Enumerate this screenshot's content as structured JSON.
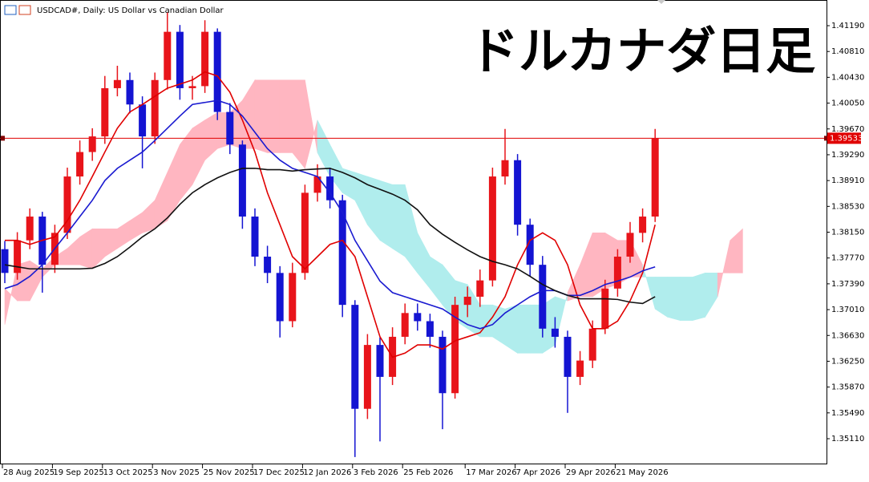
{
  "chart_data": {
    "type": "candlestick",
    "title": "USDCAD#, Daily: US Dollar vs Canadian Dollar",
    "overlay_text": "ドルカナダ日足",
    "categories": [
      "28 Aug 2025",
      null,
      null,
      null,
      "19 Sep 2025",
      null,
      null,
      null,
      "13 Oct 2025",
      null,
      null,
      null,
      "3 Nov 2025",
      null,
      null,
      null,
      "25 Nov 2025",
      null,
      null,
      null,
      "17 Dec 2025",
      null,
      null,
      null,
      "12 Jan 2026",
      null,
      null,
      null,
      "3 Feb 2026",
      null,
      null,
      null,
      "25 Feb 2026",
      null,
      null,
      null,
      null,
      "17 Mar 2026",
      null,
      null,
      null,
      "7 Apr 2026",
      null,
      null,
      null,
      "29 Apr 2026",
      null,
      null,
      null,
      "21 May 2026",
      null,
      null,
      null,
      null,
      null,
      null,
      null,
      null,
      null,
      null
    ],
    "open": [
      1.379,
      1.3755,
      1.3803,
      1.3838,
      1.3767,
      1.3814,
      1.3897,
      1.3933,
      1.3956,
      1.4027,
      1.4039,
      1.4003,
      1.3956,
      1.4039,
      1.411,
      1.4027,
      1.403,
      1.411,
      1.3992,
      1.3944,
      1.3838,
      1.3779,
      1.3755,
      1.3684,
      1.3755,
      1.3873,
      1.3897,
      1.3862,
      1.3708,
      1.3555,
      1.3649,
      1.3602,
      1.3661,
      1.3696,
      1.3684,
      1.3661,
      1.3578,
      1.3708,
      1.372,
      1.3744,
      1.3897,
      1.3921,
      1.3826,
      1.3767,
      1.3673,
      1.3661,
      1.3602,
      1.3626,
      1.3673,
      1.3732,
      1.3779,
      1.3814,
      1.3838,
      null,
      null,
      null,
      null,
      null,
      null,
      null
    ],
    "high": [
      1.3802,
      1.3815,
      1.385,
      1.3845,
      1.3826,
      1.391,
      1.395,
      1.3968,
      1.4045,
      1.406,
      1.405,
      1.4015,
      1.405,
      1.4139,
      1.412,
      1.4045,
      1.4127,
      1.4115,
      1.4005,
      1.395,
      1.385,
      1.3795,
      1.3765,
      1.377,
      1.3885,
      1.3915,
      1.391,
      1.387,
      1.3715,
      1.3665,
      1.366,
      1.3675,
      1.371,
      1.371,
      1.3695,
      1.367,
      1.372,
      1.3735,
      1.376,
      1.391,
      1.3967,
      1.393,
      1.3835,
      1.378,
      1.369,
      1.367,
      1.364,
      1.3685,
      1.3745,
      1.379,
      1.383,
      1.385,
      1.3967,
      null,
      null,
      null,
      null,
      null,
      null,
      null
    ],
    "low": [
      1.374,
      1.3745,
      1.379,
      1.3726,
      1.3755,
      1.3805,
      1.3885,
      1.392,
      1.3945,
      1.4015,
      1.399,
      1.3909,
      1.3945,
      1.4025,
      1.401,
      1.401,
      1.402,
      1.398,
      1.393,
      1.382,
      1.3765,
      1.374,
      1.366,
      1.3675,
      1.3745,
      1.386,
      1.385,
      1.369,
      1.3484,
      1.354,
      1.3507,
      1.359,
      1.365,
      1.367,
      1.3645,
      1.3525,
      1.357,
      1.369,
      1.3705,
      1.3735,
      1.3885,
      1.381,
      1.375,
      1.366,
      1.3645,
      1.3549,
      1.359,
      1.3615,
      1.3665,
      1.372,
      1.377,
      1.38,
      1.383,
      null,
      null,
      null,
      null,
      null,
      null,
      null
    ],
    "close": [
      1.3755,
      1.3803,
      1.3838,
      1.3767,
      1.3814,
      1.3897,
      1.3933,
      1.3956,
      1.4027,
      1.4039,
      1.4003,
      1.3956,
      1.4039,
      1.411,
      1.4027,
      1.403,
      1.411,
      1.3992,
      1.3944,
      1.3838,
      1.3779,
      1.3755,
      1.3684,
      1.3755,
      1.3873,
      1.3897,
      1.3862,
      1.3708,
      1.3555,
      1.3649,
      1.3602,
      1.3661,
      1.3696,
      1.3684,
      1.3661,
      1.3578,
      1.3708,
      1.372,
      1.3744,
      1.3897,
      1.3921,
      1.3826,
      1.3767,
      1.3673,
      1.3661,
      1.3602,
      1.3626,
      1.3673,
      1.3732,
      1.3779,
      1.3814,
      1.3838,
      1.3953,
      null,
      null,
      null,
      null,
      null,
      null,
      null
    ],
    "up_color": "#e8141a",
    "down_color": "#1414d2",
    "moving_averages": [
      {
        "color": "#e00000",
        "values": [
          1.3803,
          1.3803,
          1.3797,
          1.3803,
          1.3808,
          1.3832,
          1.3862,
          1.3897,
          1.3933,
          1.3968,
          1.3992,
          1.4003,
          1.4015,
          1.4027,
          1.4033,
          1.4039,
          1.4051,
          1.4045,
          1.4021,
          1.398,
          1.3933,
          1.3873,
          1.3826,
          1.3779,
          1.3761,
          1.3779,
          1.3797,
          1.3803,
          1.3779,
          1.372,
          1.3661,
          1.3631,
          1.3637,
          1.3649,
          1.3649,
          1.3643,
          1.3655,
          1.3661,
          1.3667,
          1.369,
          1.372,
          1.3767,
          1.3803,
          1.3814,
          1.3803,
          1.3767,
          1.3708,
          1.3673,
          1.3673,
          1.3684,
          1.3714,
          1.3755,
          1.3826,
          null,
          null,
          null,
          null,
          null,
          null,
          null
        ]
      },
      {
        "color": "#1a1ad0",
        "values": [
          1.3732,
          1.3738,
          1.375,
          1.3767,
          1.3791,
          1.3814,
          1.3838,
          1.3862,
          1.3891,
          1.3909,
          1.3921,
          1.3933,
          1.395,
          1.3968,
          1.3986,
          1.4003,
          1.4006,
          1.4009,
          1.4003,
          1.3986,
          1.3962,
          1.3938,
          1.3921,
          1.3909,
          1.3903,
          1.3897,
          1.3873,
          1.3844,
          1.3803,
          1.3773,
          1.3743,
          1.3726,
          1.372,
          1.3714,
          1.3708,
          1.3702,
          1.369,
          1.3679,
          1.3673,
          1.3679,
          1.3696,
          1.3708,
          1.372,
          1.3729,
          1.3729,
          1.3722,
          1.3722,
          1.3729,
          1.3738,
          1.3743,
          1.3749,
          1.3758,
          1.3764,
          null,
          null,
          null,
          null,
          null,
          null,
          null
        ]
      },
      {
        "color": "#111111",
        "values": [
          1.3767,
          1.3764,
          1.3761,
          1.3761,
          1.3761,
          1.3761,
          1.3761,
          1.3762,
          1.3769,
          1.3779,
          1.3793,
          1.3808,
          1.382,
          1.3836,
          1.3856,
          1.3873,
          1.3885,
          1.3895,
          1.3903,
          1.3909,
          1.3909,
          1.3907,
          1.3907,
          1.3905,
          1.3907,
          1.3908,
          1.3909,
          1.3903,
          1.3895,
          1.3885,
          1.3878,
          1.3871,
          1.3862,
          1.3848,
          1.3826,
          1.3812,
          1.38,
          1.3789,
          1.3779,
          1.3772,
          1.3767,
          1.3761,
          1.375,
          1.3738,
          1.3729,
          1.3722,
          1.3717,
          1.3717,
          1.3717,
          1.3716,
          1.3712,
          1.371,
          1.372,
          null,
          null,
          null,
          null,
          null,
          null,
          null
        ]
      }
    ],
    "span_a": [
      1.3679,
      1.3767,
      1.3773,
      1.3761,
      1.3779,
      1.3791,
      1.3808,
      1.382,
      1.382,
      1.382,
      1.3832,
      1.3844,
      1.3862,
      1.3903,
      1.3944,
      1.3968,
      1.398,
      1.3991,
      1.3991,
      1.4009,
      1.4039,
      1.4039,
      1.4039,
      1.4039,
      1.4039,
      1.3932,
      1.3897,
      1.3873,
      1.3862,
      1.3826,
      1.3803,
      1.3791,
      1.3779,
      1.3755,
      1.3732,
      1.3708,
      1.3685,
      1.3673,
      1.3661,
      1.3661,
      1.3649,
      1.3637,
      1.3637,
      1.3637,
      1.3649,
      1.3726,
      1.3767,
      1.3814,
      1.3814,
      1.3803,
      1.3803,
      1.3767,
      1.3702,
      1.369,
      1.3685,
      1.3685,
      1.369,
      1.372,
      1.3803,
      1.382
    ],
    "span_b": [
      1.3732,
      1.3714,
      1.3714,
      1.3749,
      1.3767,
      1.3767,
      1.3767,
      1.3761,
      1.3779,
      1.3791,
      1.3803,
      1.3814,
      1.382,
      1.3832,
      1.3862,
      1.3885,
      1.3921,
      1.3938,
      1.3944,
      1.3938,
      1.3938,
      1.3932,
      1.3932,
      1.3932,
      1.3909,
      1.398,
      1.3944,
      1.3909,
      1.3903,
      1.3897,
      1.3891,
      1.3885,
      1.3885,
      1.3814,
      1.3779,
      1.3767,
      1.3744,
      1.3738,
      1.3708,
      1.3708,
      1.3702,
      1.3708,
      1.3708,
      1.3708,
      1.372,
      1.3714,
      1.372,
      1.372,
      1.3732,
      1.3738,
      1.3749,
      1.3749,
      1.3749,
      1.3749,
      1.3749,
      1.3749,
      1.3755,
      1.3755,
      1.3755,
      1.3755
    ],
    "cloud_up_color": "#ffb6c1",
    "cloud_down_color": "#b0eded",
    "current_price": 1.39533,
    "current_price_color": "#e00000",
    "ylim": [
      1.34744,
      1.41568
    ],
    "yticks": [
      {
        "value": 1.4119,
        "label": "1.41190"
      },
      {
        "value": 1.4081,
        "label": "1.40810"
      },
      {
        "value": 1.4043,
        "label": "1.40430"
      },
      {
        "value": 1.4005,
        "label": "1.40050"
      },
      {
        "value": 1.3967,
        "label": "1.39670"
      },
      {
        "value": 1.3929,
        "label": "1.39290"
      },
      {
        "value": 1.3891,
        "label": "1.38910"
      },
      {
        "value": 1.3853,
        "label": "1.38530"
      },
      {
        "value": 1.3815,
        "label": "1.38150"
      },
      {
        "value": 1.3777,
        "label": "1.37770"
      },
      {
        "value": 1.3739,
        "label": "1.37390"
      },
      {
        "value": 1.3701,
        "label": "1.37010"
      },
      {
        "value": 1.3663,
        "label": "1.36630"
      },
      {
        "value": 1.3625,
        "label": "1.36250"
      },
      {
        "value": 1.3587,
        "label": "1.35870"
      },
      {
        "value": 1.3549,
        "label": "1.35490"
      },
      {
        "value": 1.3511,
        "label": "1.35110"
      }
    ],
    "grid": false
  }
}
